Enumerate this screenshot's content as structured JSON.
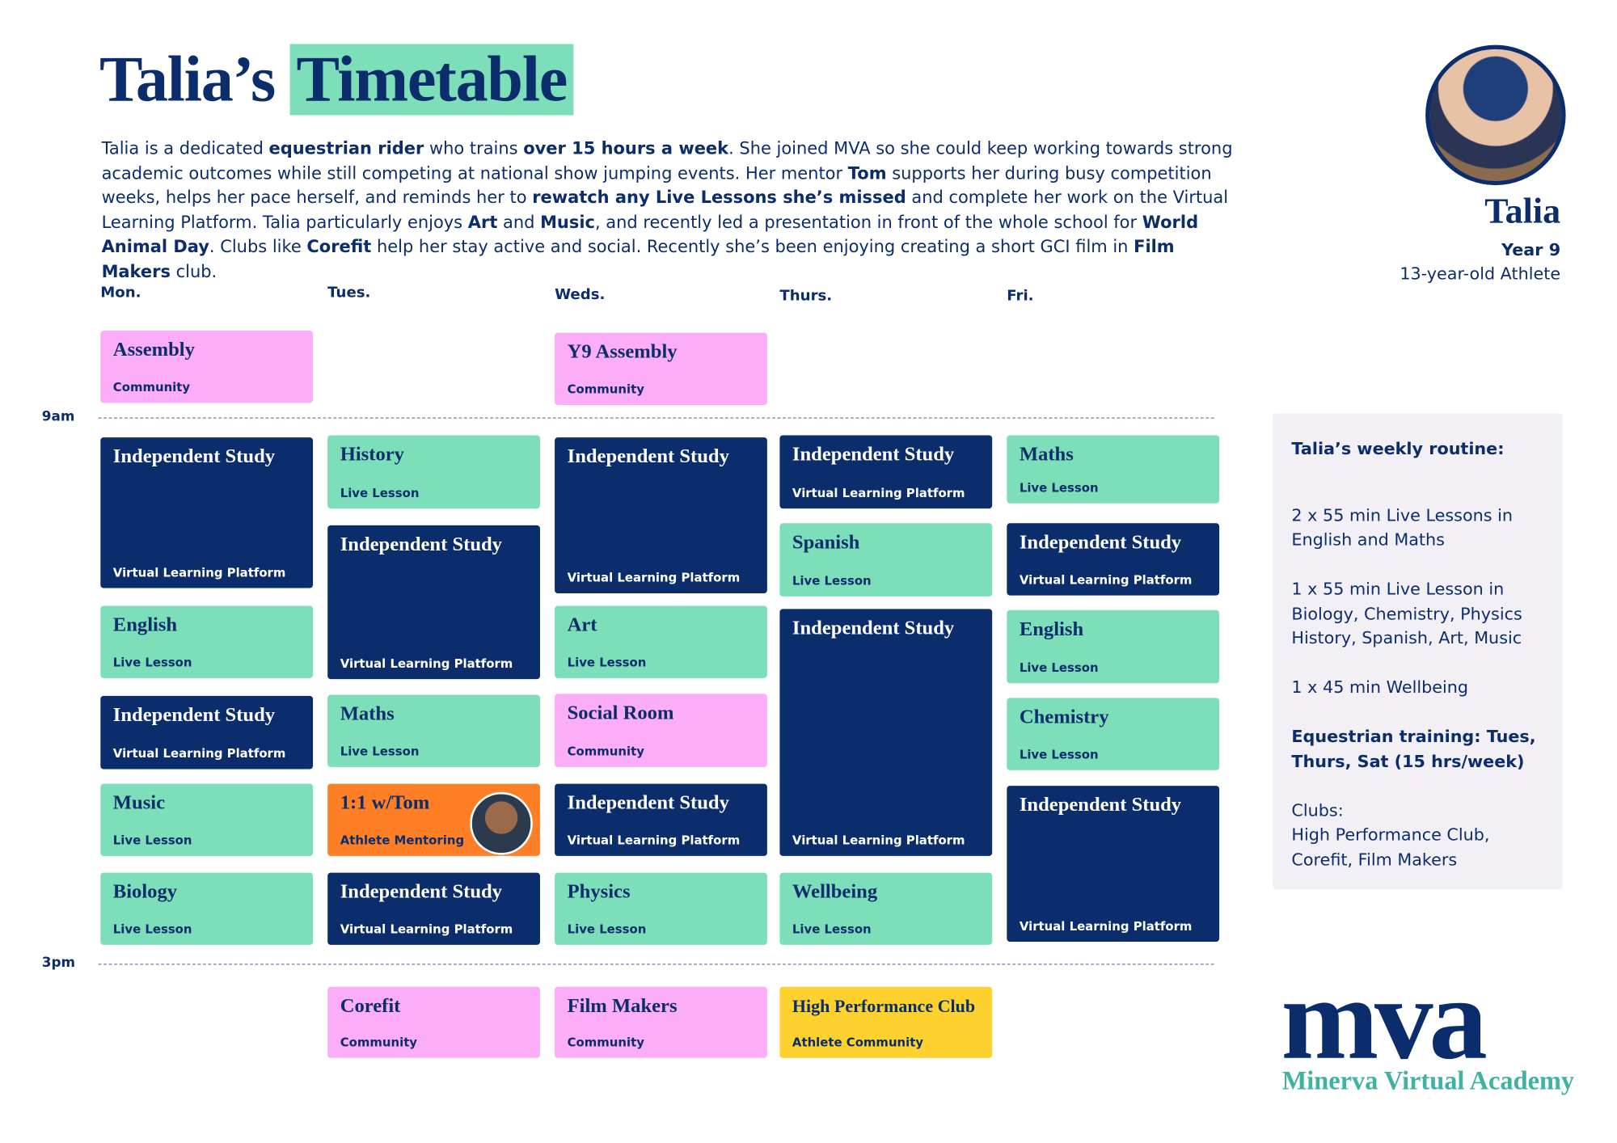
{
  "header": {
    "title": "Talia’s",
    "title_highlight": "Timetable",
    "intro": [
      {
        "text": "Talia is a dedicated ",
        "bold": false
      },
      {
        "text": "equestrian rider",
        "bold": true
      },
      {
        "text": " who trains ",
        "bold": false
      },
      {
        "text": "over 15 hours a week",
        "bold": true
      },
      {
        "text": ". She joined MVA so she could keep working towards strong academic outcomes while still competing at national show jumping events. Her mentor ",
        "bold": false
      },
      {
        "text": "Tom",
        "bold": true
      },
      {
        "text": " supports her during busy competition weeks, helps her pace herself, and reminds her to ",
        "bold": false
      },
      {
        "text": "rewatch any Live Lessons she’s missed",
        "bold": true
      },
      {
        "text": " and complete her work on the Virtual Learning Platform. Talia particularly enjoys ",
        "bold": false
      },
      {
        "text": "Art",
        "bold": true
      },
      {
        "text": " and ",
        "bold": false
      },
      {
        "text": "Music",
        "bold": true
      },
      {
        "text": ", and recently led a presentation in front of the whole school for ",
        "bold": false
      },
      {
        "text": "World Animal Day",
        "bold": true
      },
      {
        "text": ". Clubs like ",
        "bold": false
      },
      {
        "text": "Corefit",
        "bold": true
      },
      {
        "text": " help her stay active and social. Recently she’s been enjoying creating a short GCI film in ",
        "bold": false
      },
      {
        "text": "Film Makers",
        "bold": true
      },
      {
        "text": " club.",
        "bold": false
      }
    ]
  },
  "profile": {
    "name": "Talia",
    "year": "Year 9",
    "description": "13-year-old Athlete"
  },
  "times": [
    "9am",
    "3pm"
  ],
  "days": [
    {
      "label": "Mon.",
      "blocks": [
        {
          "title": "Assembly",
          "subtitle": "Community",
          "color": "#fbadf7"
        },
        {
          "title": "Independent Study",
          "subtitle": "Virtual Learning Platform",
          "color": "#0c2d6b"
        },
        {
          "title": "English",
          "subtitle": "Live Lesson",
          "color": "#7ddfb9"
        },
        {
          "title": "Independent Study",
          "subtitle": "Virtual Learning Platform",
          "color": "#0c2d6b"
        },
        {
          "title": "Music",
          "subtitle": "Live Lesson",
          "color": "#7ddfb9"
        },
        {
          "title": "Biology",
          "subtitle": "Live Lesson",
          "color": "#7ddfb9"
        }
      ]
    },
    {
      "label": "Tues.",
      "blocks": [
        {
          "title": "History",
          "subtitle": "Live Lesson",
          "color": "#7ddfb9"
        },
        {
          "title": "Independent Study",
          "subtitle": "Virtual Learning Platform",
          "color": "#0c2d6b"
        },
        {
          "title": "Maths",
          "subtitle": "Live Lesson",
          "color": "#7ddfb9"
        },
        {
          "title": "1:1 w/Tom",
          "subtitle": "Athlete Mentoring",
          "color": "#ff7f27"
        },
        {
          "title": "Independent Study",
          "subtitle": "Virtual Learning Platform",
          "color": "#0c2d6b"
        },
        {
          "title": "Corefit",
          "subtitle": "Community",
          "color": "#fbadf7"
        }
      ]
    },
    {
      "label": "Weds.",
      "blocks": [
        {
          "title": "Y9 Assembly",
          "subtitle": "Community",
          "color": "#fbadf7"
        },
        {
          "title": "Independent Study",
          "subtitle": "Virtual Learning Platform",
          "color": "#0c2d6b"
        },
        {
          "title": "Art",
          "subtitle": "Live Lesson",
          "color": "#7ddfb9"
        },
        {
          "title": "Social Room",
          "subtitle": "Community",
          "color": "#fbadf7"
        },
        {
          "title": "Independent Study",
          "subtitle": "Virtual Learning Platform",
          "color": "#0c2d6b"
        },
        {
          "title": "Physics",
          "subtitle": "Live Lesson",
          "color": "#7ddfb9"
        },
        {
          "title": "Film Makers",
          "subtitle": "Community",
          "color": "#fbadf7"
        }
      ]
    },
    {
      "label": "Thurs.",
      "blocks": [
        {
          "title": "Independent Study",
          "subtitle": "Virtual Learning Platform",
          "color": "#0c2d6b"
        },
        {
          "title": "Spanish",
          "subtitle": "Live Lesson",
          "color": "#7ddfb9"
        },
        {
          "title": "Independent Study",
          "subtitle": "Virtual Learning Platform",
          "color": "#0c2d6b"
        },
        {
          "title": "Wellbeing",
          "subtitle": "Live Lesson",
          "color": "#7ddfb9"
        },
        {
          "title": "High Performance Club",
          "subtitle": "Athlete Community",
          "color": "#fdd12e"
        }
      ]
    },
    {
      "label": "Fri.",
      "blocks": [
        {
          "title": "Maths",
          "subtitle": "Live Lesson",
          "color": "#7ddfb9"
        },
        {
          "title": "Independent Study",
          "subtitle": "Virtual Learning Platform",
          "color": "#0c2d6b"
        },
        {
          "title": "English",
          "subtitle": "Live Lesson",
          "color": "#7ddfb9"
        },
        {
          "title": "Chemistry",
          "subtitle": "Live Lesson",
          "color": "#7ddfb9"
        },
        {
          "title": "Independent Study",
          "subtitle": "Virtual Learning Platform",
          "color": "#0c2d6b"
        }
      ]
    }
  ],
  "routine": {
    "heading": "Talia’s weekly routine:",
    "items": [
      {
        "lines": [
          "2 x 55 min Live Lessons in",
          "English and Maths"
        ],
        "bold": false
      },
      {
        "lines": [
          "1 x 55 min Live Lesson in",
          "Biology, Chemistry, Physics",
          "History, Spanish, Art, Music"
        ],
        "bold": false
      },
      {
        "lines": [
          "1 x 45 min Wellbeing"
        ],
        "bold": false
      },
      {
        "lines": [
          "Equestrian training: Tues,",
          "Thurs, Sat (15 hrs/week)"
        ],
        "bold": true
      },
      {
        "lines": [
          "Clubs:",
          "High Performance Club,",
          "Corefit, Film Makers"
        ],
        "bold": false
      }
    ]
  },
  "logo": {
    "mark": "mva",
    "name": "Minerva Virtual Academy"
  }
}
